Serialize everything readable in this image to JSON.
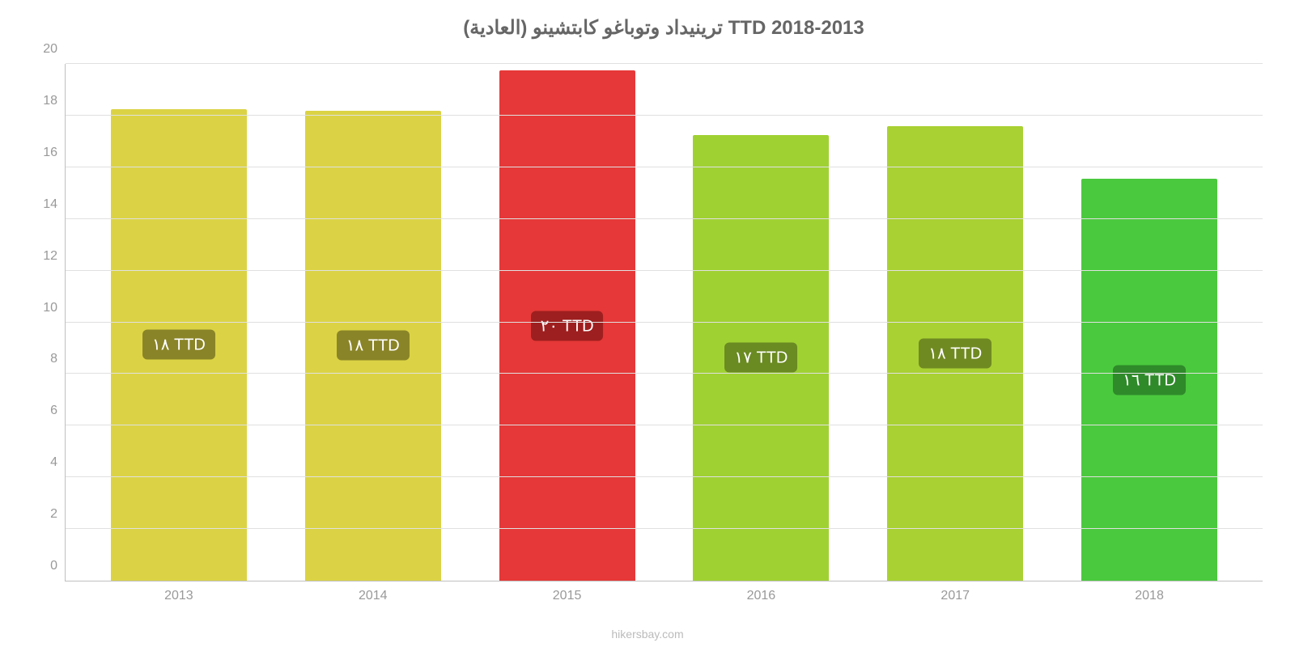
{
  "chart": {
    "type": "bar",
    "title": "ترينيداد وتوباغو كابتشينو (العادية) TTD 2018-2013",
    "title_fontsize": 24,
    "title_color": "#666666",
    "background_color": "#ffffff",
    "grid_color": "#e0e0e0",
    "axis_color": "#c0c0c0",
    "tick_label_color": "#999999",
    "tick_fontsize": 16,
    "ylim_min": 0,
    "ylim_max": 20,
    "ytick_step": 2,
    "yticks": [
      0,
      2,
      4,
      6,
      8,
      10,
      12,
      14,
      16,
      18,
      20
    ],
    "categories": [
      "2013",
      "2014",
      "2015",
      "2016",
      "2017",
      "2018"
    ],
    "values": [
      18.25,
      18.2,
      19.75,
      17.25,
      17.6,
      15.55
    ],
    "bar_colors": [
      "#dbd345",
      "#dbd345",
      "#e63838",
      "#a0d133",
      "#a9d133",
      "#4bc93e"
    ],
    "bar_labels": [
      "١٨ TTD",
      "١٨ TTD",
      "٢٠ TTD",
      "١٧ TTD",
      "١٨ TTD",
      "١٦ TTD"
    ],
    "bar_label_bg": [
      "#8a8428",
      "#8a8428",
      "#9e1f1f",
      "#6a8a22",
      "#708a22",
      "#2f8a2a"
    ],
    "bar_label_fontsize": 20,
    "bar_label_color": "#ffffff",
    "bar_width_pct": 70,
    "attribution": "hikersbay.com",
    "attribution_fontsize": 14,
    "attribution_color": "#bbbbbb"
  }
}
